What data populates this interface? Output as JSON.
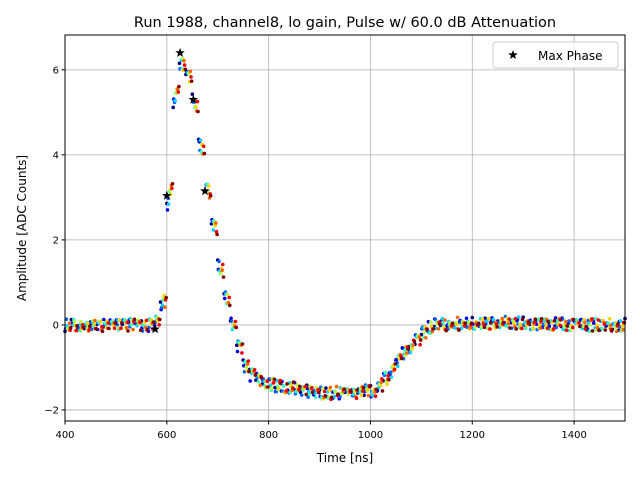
{
  "chart_data": {
    "type": "scatter",
    "title": "Run 1988, channel8, lo gain, Pulse w/ 60.0 dB Attenuation",
    "xlabel": "Time [ns]",
    "ylabel": "Amplitude [ADC Counts]",
    "xlim": [
      400,
      1500
    ],
    "ylim": [
      -2.26,
      6.82
    ],
    "xticks": [
      400,
      600,
      800,
      1000,
      1200,
      1400
    ],
    "yticks": [
      -2,
      0,
      2,
      4,
      6
    ],
    "grid": true,
    "legend_position": "top-right",
    "colormap": "jet",
    "waveform": {
      "x": [
        400,
        450,
        500,
        550,
        570,
        580,
        590,
        600,
        610,
        620,
        630,
        640,
        650,
        660,
        670,
        680,
        690,
        700,
        710,
        720,
        730,
        740,
        750,
        760,
        780,
        800,
        850,
        900,
        950,
        1000,
        1020,
        1040,
        1060,
        1080,
        1100,
        1120,
        1200,
        1300,
        1400,
        1500
      ],
      "y": [
        0,
        0,
        0,
        0,
        0,
        0.1,
        0.6,
        2.8,
        5.0,
        6.0,
        6.2,
        5.8,
        5.3,
        4.5,
        3.6,
        2.9,
        2.2,
        1.4,
        0.8,
        0.3,
        -0.2,
        -0.6,
        -0.95,
        -1.15,
        -1.3,
        -1.4,
        -1.5,
        -1.6,
        -1.6,
        -1.55,
        -1.35,
        -1.05,
        -0.7,
        -0.45,
        -0.2,
        0,
        0.05,
        0.05,
        0,
        0
      ]
    },
    "series": [
      {
        "name": "Max Phase",
        "marker": "star",
        "color": "#000000",
        "x": [
          577,
          600,
          626,
          652,
          675
        ],
        "y": [
          -0.1,
          3.04,
          6.4,
          5.3,
          3.15
        ]
      }
    ]
  }
}
